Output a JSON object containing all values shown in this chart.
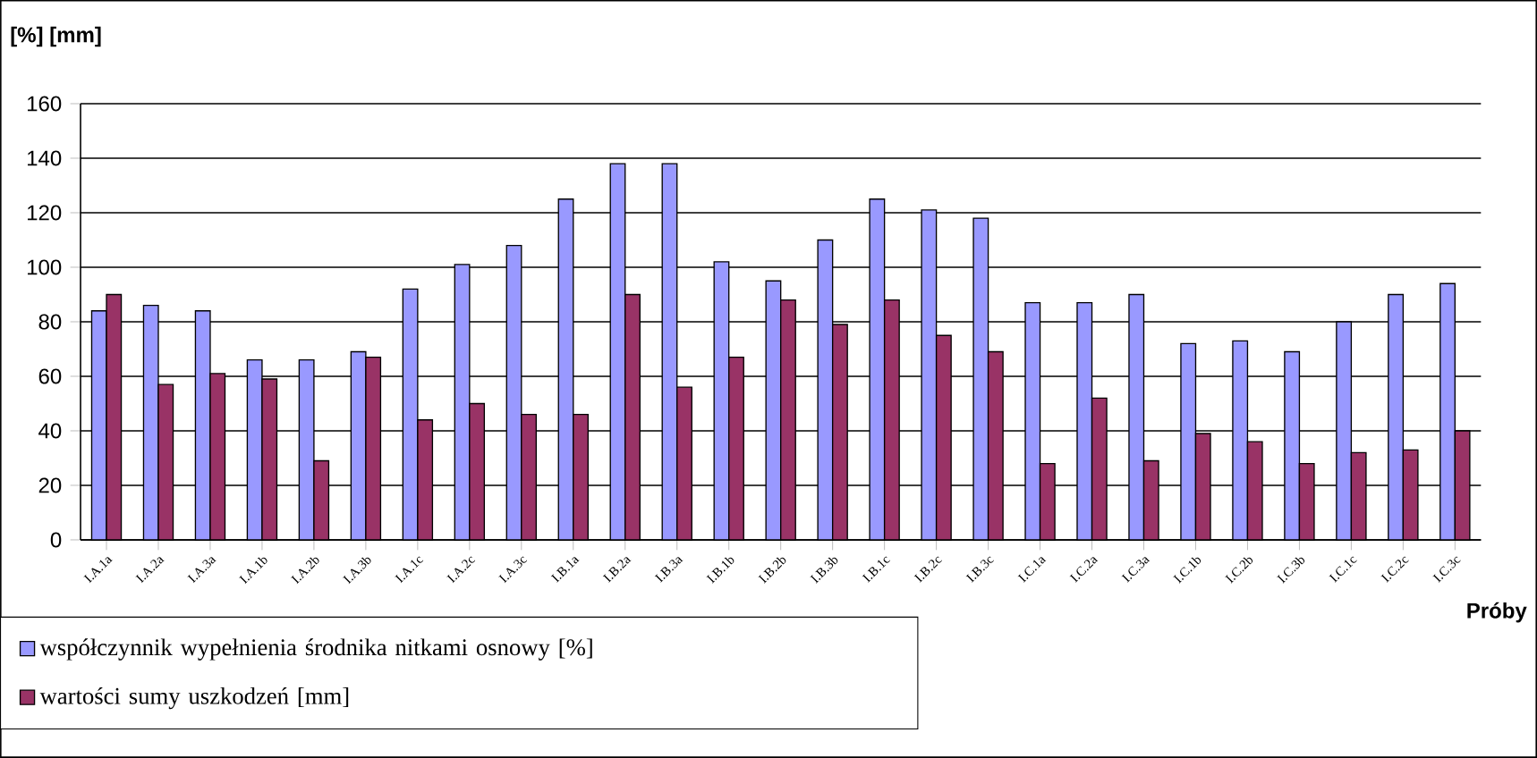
{
  "chart_data": {
    "type": "bar",
    "ylabel": "[%]   [mm]",
    "xlabel": "Próby",
    "categories": [
      "I.A.1a",
      "I.A.2a",
      "I.A.3a",
      "I.A.1b",
      "I.A.2b",
      "I.A.3b",
      "I.A.1c",
      "I.A.2c",
      "I.A.3c",
      "I.B.1a",
      "I.B.2a",
      "I.B.3a",
      "I.B.1b",
      "I.B.2b",
      "I.B.3b",
      "I.B.1c",
      "I.B.2c",
      "I.B.3c",
      "I.C.1a",
      "I.C.2a",
      "I.C.3a",
      "I.C.1b",
      "I.C.2b",
      "I.C.3b",
      "I.C.1c",
      "I.C.2c",
      "I.C.3c"
    ],
    "series": [
      {
        "name": "współczynnik wypełnienia środnika nitkami osnowy [%]",
        "color": "#9999ff",
        "values": [
          84,
          86,
          84,
          66,
          66,
          69,
          92,
          101,
          108,
          125,
          138,
          138,
          102,
          95,
          110,
          125,
          121,
          118,
          87,
          87,
          90,
          72,
          73,
          69,
          80,
          90,
          94
        ]
      },
      {
        "name": "wartości sumy uszkodzeń [mm]",
        "color": "#993366",
        "values": [
          90,
          57,
          61,
          59,
          29,
          67,
          44,
          50,
          46,
          46,
          90,
          56,
          67,
          88,
          79,
          88,
          75,
          69,
          28,
          52,
          29,
          39,
          36,
          28,
          32,
          33,
          40
        ]
      }
    ],
    "ylim": [
      0,
      160
    ],
    "yticks": [
      0,
      20,
      40,
      60,
      80,
      100,
      120,
      140,
      160
    ],
    "grid": "y",
    "legend": "bottom left"
  }
}
